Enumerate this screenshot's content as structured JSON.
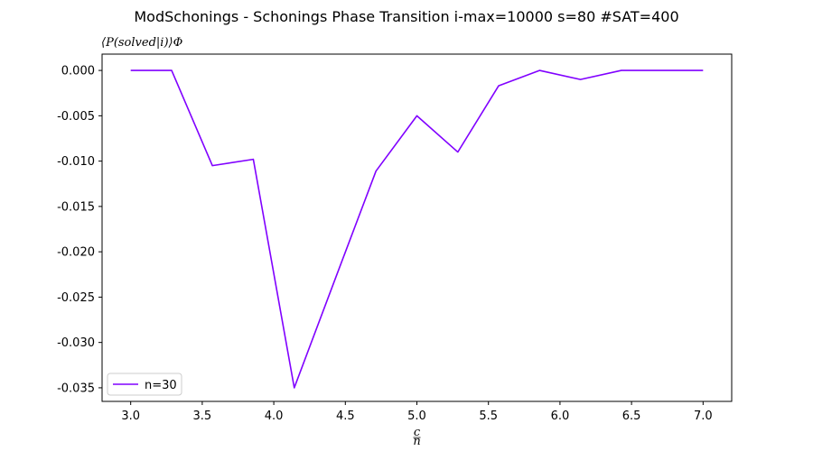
{
  "chart_data": {
    "type": "line",
    "title": "ModSchonings - Schonings Phase Transition  i-max=10000 s=80 #SAT=400",
    "ylabel": "⟨P(solved|i)⟩Φ",
    "xlabel": "c/n",
    "xlim": [
      2.8,
      7.2
    ],
    "ylim": [
      -0.0365,
      0.0018
    ],
    "xticks": [
      3.0,
      3.5,
      4.0,
      4.5,
      5.0,
      5.5,
      6.0,
      6.5,
      7.0
    ],
    "xtick_labels": [
      "3.0",
      "3.5",
      "4.0",
      "4.5",
      "5.0",
      "5.5",
      "6.0",
      "6.5",
      "7.0"
    ],
    "yticks": [
      0.0,
      -0.005,
      -0.01,
      -0.015,
      -0.02,
      -0.025,
      -0.03,
      -0.035
    ],
    "ytick_labels": [
      "0.000",
      "-0.005",
      "-0.010",
      "-0.015",
      "-0.020",
      "-0.025",
      "-0.030",
      "-0.035"
    ],
    "grid": false,
    "legend_position": "lower-left",
    "series": [
      {
        "name": "n=30",
        "color": "#8000ff",
        "x": [
          3.0,
          3.286,
          3.571,
          3.857,
          4.143,
          4.429,
          4.714,
          5.0,
          5.286,
          5.571,
          5.857,
          6.143,
          6.429,
          6.714,
          7.0
        ],
        "y": [
          0.0,
          0.0,
          -0.0105,
          -0.0098,
          -0.035,
          -0.023,
          -0.0111,
          -0.005,
          -0.009,
          -0.0017,
          0.0,
          -0.001,
          0.0,
          0.0,
          0.0
        ]
      }
    ]
  }
}
